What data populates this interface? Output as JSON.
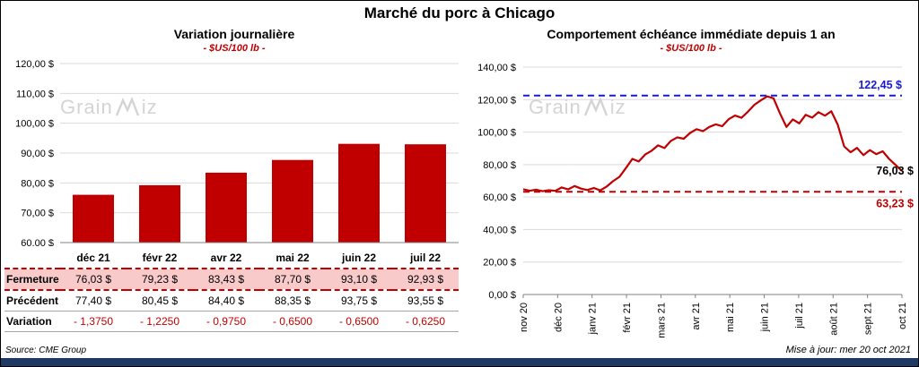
{
  "title": "Marché du porc à Chicago",
  "left_panel": {
    "title": "Variation journalière",
    "subtitle": "- $US/100 lb -"
  },
  "right_panel": {
    "title": "Comportement échéance immédiate depuis 1 an",
    "subtitle": "- $US/100 lb -"
  },
  "watermark": {
    "prefix": "Grain",
    "suffix": "iz"
  },
  "table": {
    "columns": [
      "déc 21",
      "févr 22",
      "avr 22",
      "mai 22",
      "juin 22",
      "juil 22"
    ],
    "rows": [
      {
        "key": "fermeture",
        "label": "Fermeture",
        "values": [
          "76,03 $",
          "79,23 $",
          "83,43 $",
          "87,70 $",
          "93,10 $",
          "92,93 $"
        ]
      },
      {
        "key": "precedent",
        "label": "Précédent",
        "values": [
          "77,40 $",
          "80,45 $",
          "84,40 $",
          "88,35 $",
          "93,75 $",
          "93,55 $"
        ]
      },
      {
        "key": "variation",
        "label": "Variation",
        "values": [
          "- 1,3750",
          "- 1,2250",
          "- 0,9750",
          "- 0,6500",
          "- 0,6500",
          "- 0,6250"
        ]
      }
    ]
  },
  "source": "Source: CME Group",
  "updated": "Mise à jour: mer 20 oct 2021",
  "chart_data": [
    {
      "type": "bar",
      "title": "Variation journalière",
      "subtitle": "- $US/100 lb -",
      "categories": [
        "déc 21",
        "févr 22",
        "avr 22",
        "mai 22",
        "juin 22",
        "juil 22"
      ],
      "values": [
        76.03,
        79.23,
        83.43,
        87.7,
        93.1,
        92.93
      ],
      "ylabel": "$US/100 lb",
      "ylim": [
        60,
        120
      ],
      "ytick_step": 10,
      "grid": true,
      "bar_color": "#C00000"
    },
    {
      "type": "line",
      "title": "Comportement échéance immédiate depuis 1 an",
      "subtitle": "- $US/100 lb -",
      "x_categories": [
        "nov 20",
        "déc 20",
        "janv 21",
        "févr 21",
        "mars 21",
        "avr 21",
        "mai 21",
        "juin 21",
        "juil 21",
        "août 21",
        "sept 21",
        "oct 21"
      ],
      "values": [
        64.8,
        63.9,
        64.5,
        63.6,
        64.2,
        63.8,
        65.9,
        64.7,
        66.8,
        65.2,
        64.3,
        65.6,
        64.1,
        66.5,
        69.8,
        72.5,
        77.8,
        83.5,
        81.9,
        86.2,
        88.5,
        91.8,
        90.2,
        94.6,
        96.8,
        95.9,
        99.5,
        101.8,
        100.6,
        103.2,
        104.8,
        103.6,
        107.9,
        110.2,
        108.8,
        112.5,
        116.8,
        119.5,
        122.0,
        120.8,
        111.5,
        103.2,
        107.8,
        105.4,
        110.6,
        108.9,
        112.3,
        110.1,
        112.8,
        104.5,
        91.2,
        87.6,
        90.3,
        85.8,
        88.9,
        86.4,
        88.2,
        83.5,
        79.8,
        76.03
      ],
      "ylabel": "$US/100 lb",
      "ylim": [
        0,
        140
      ],
      "ytick_step": 20,
      "grid": true,
      "line_color": "#C00000",
      "annotations": [
        {
          "type": "hline",
          "value": 122.45,
          "color": "#1A1AD6",
          "style": "dashed",
          "label": "122,45 $"
        },
        {
          "type": "hline",
          "value": 63.23,
          "color": "#C00000",
          "style": "dashed",
          "label": "63,23 $"
        },
        {
          "type": "point-label",
          "value": 76.03,
          "color": "#000000",
          "label": "76,03 $"
        }
      ]
    }
  ]
}
